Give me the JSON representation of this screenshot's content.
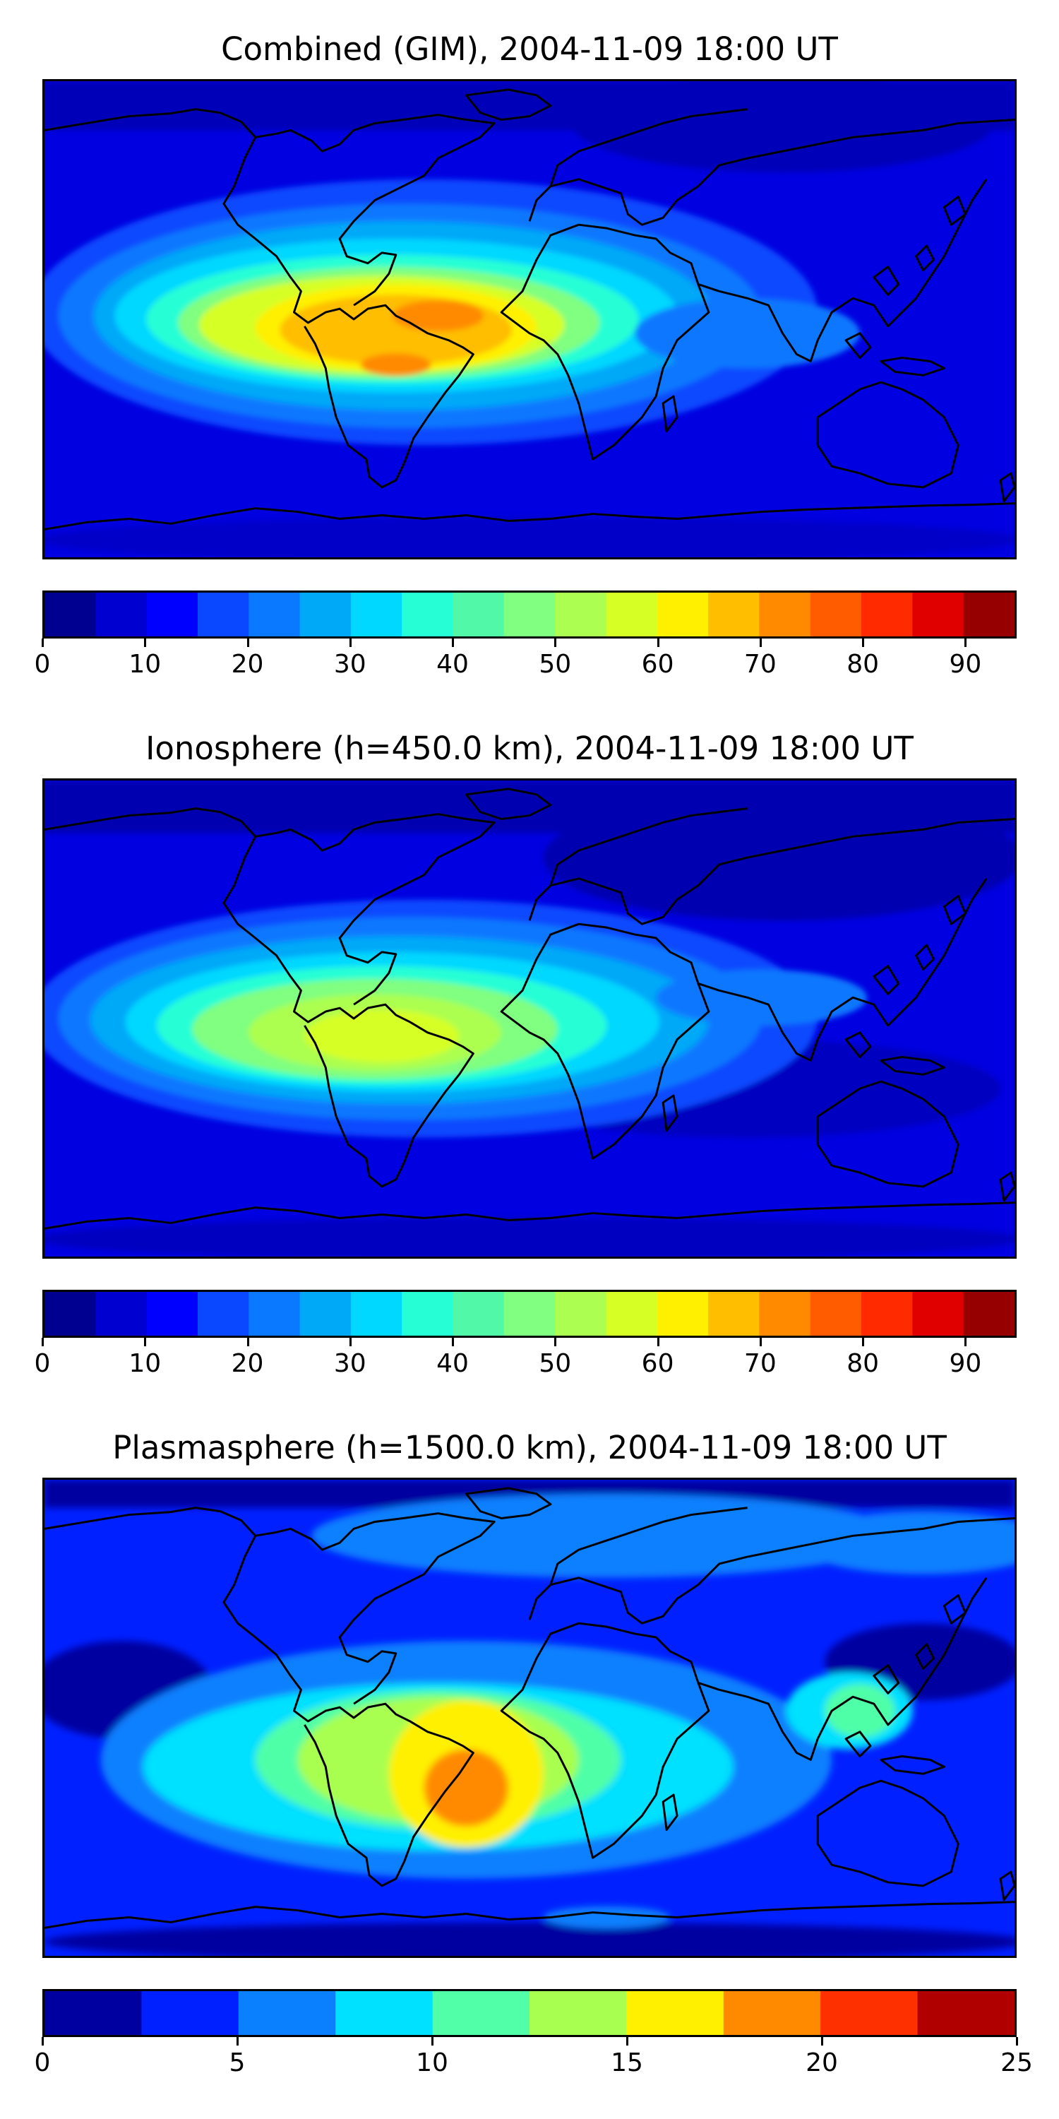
{
  "figure": {
    "panels": [
      {
        "title": "Combined (GIM), 2004-11-09 18:00 UT"
      },
      {
        "title": "Ionosphere  (h=450.0 km), 2004-11-09 18:00 UT"
      },
      {
        "title": "Plasmasphere (h=1500.0 km), 2004-11-09 18:00 UT"
      }
    ]
  },
  "chart_data": [
    {
      "type": "heatmap",
      "title": "Combined (GIM), 2004-11-09 18:00 UT",
      "projection": "global map with coastlines",
      "grid": false,
      "colorbar": {
        "location": "below",
        "levels": [
          0,
          5,
          10,
          15,
          20,
          25,
          30,
          35,
          40,
          45,
          50,
          55,
          60,
          65,
          70,
          75,
          80,
          85,
          90,
          95
        ],
        "ticks": [
          0,
          10,
          20,
          30,
          40,
          50,
          60,
          70,
          80,
          90
        ],
        "colors": [
          "#000090",
          "#0000d0",
          "#0000ff",
          "#0a48ff",
          "#0a78ff",
          "#00a8f8",
          "#00d8ff",
          "#26ffd6",
          "#50f8a8",
          "#80ff80",
          "#acff50",
          "#d6ff26",
          "#fff000",
          "#ffbe00",
          "#ff8a00",
          "#ff5c00",
          "#ff2a00",
          "#e00000",
          "#960000"
        ]
      },
      "features": [
        {
          "name": "equatorial anomaly band",
          "lon_range": [
            -150,
            60
          ],
          "value_range": [
            30,
            55
          ]
        },
        {
          "name": "peak over South America / South Atlantic",
          "lon": -45,
          "lat": -10,
          "value": 72
        },
        {
          "name": "background",
          "value_range": [
            5,
            15
          ]
        }
      ]
    },
    {
      "type": "heatmap",
      "title": "Ionosphere  (h=450.0 km), 2004-11-09 18:00 UT",
      "projection": "global map with coastlines",
      "grid": false,
      "colorbar": {
        "location": "below",
        "levels": [
          0,
          5,
          10,
          15,
          20,
          25,
          30,
          35,
          40,
          45,
          50,
          55,
          60,
          65,
          70,
          75,
          80,
          85,
          90,
          95
        ],
        "ticks": [
          0,
          10,
          20,
          30,
          40,
          50,
          60,
          70,
          80,
          90
        ],
        "colors": [
          "#000090",
          "#0000d0",
          "#0000ff",
          "#0a48ff",
          "#0a78ff",
          "#00a8f8",
          "#00d8ff",
          "#26ffd6",
          "#50f8a8",
          "#80ff80",
          "#acff50",
          "#d6ff26",
          "#fff000",
          "#ffbe00",
          "#ff8a00",
          "#ff5c00",
          "#ff2a00",
          "#e00000",
          "#960000"
        ]
      },
      "features": [
        {
          "name": "equatorial anomaly band",
          "lon_range": [
            -150,
            60
          ],
          "value_range": [
            25,
            45
          ]
        },
        {
          "name": "peak over South America",
          "lon": -55,
          "lat": -10,
          "value": 56
        },
        {
          "name": "background",
          "value_range": [
            5,
            12
          ]
        }
      ]
    },
    {
      "type": "heatmap",
      "title": "Plasmasphere (h=1500.0 km), 2004-11-09 18:00 UT",
      "projection": "global map with coastlines",
      "grid": false,
      "colorbar": {
        "location": "below",
        "levels": [
          0,
          2.5,
          5,
          7.5,
          10,
          12.5,
          15,
          17.5,
          20,
          22.5,
          25
        ],
        "ticks": [
          0,
          5,
          10,
          15,
          20,
          25
        ],
        "colors": [
          "#0000a0",
          "#0020ff",
          "#0a80ff",
          "#00e0ff",
          "#50ffa8",
          "#a8ff50",
          "#fff000",
          "#ff8a00",
          "#ff3000",
          "#b00000"
        ]
      },
      "features": [
        {
          "name": "peak over South Atlantic",
          "lon": -40,
          "lat": -20,
          "value": 18
        },
        {
          "name": "secondary max over Indonesia",
          "lon": 115,
          "lat": 0,
          "value": 9
        },
        {
          "name": "background",
          "value_range": [
            2.5,
            7.5
          ]
        }
      ]
    }
  ]
}
